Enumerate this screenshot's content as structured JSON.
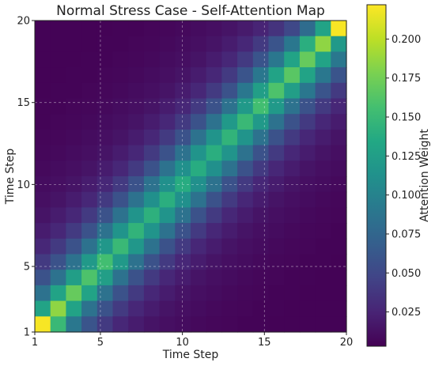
{
  "chart_data": {
    "type": "heatmap",
    "title": "Normal Stress Case - Self-Attention Map",
    "xlabel": "Time Step",
    "ylabel": "Time Step",
    "x_ticks": [
      "1",
      "5",
      "10",
      "15",
      "20"
    ],
    "y_ticks": [
      "1",
      "5",
      "10",
      "15",
      "20"
    ],
    "x_tick_values": [
      1,
      5,
      10,
      15,
      20
    ],
    "y_tick_values": [
      1,
      5,
      10,
      15,
      20
    ],
    "rows_top_to_bottom_time_step": [
      20,
      19,
      18,
      17,
      16,
      15,
      14,
      13,
      12,
      11,
      10,
      9,
      8,
      7,
      6,
      5,
      4,
      3,
      2,
      1
    ],
    "cols_left_to_right_time_step": [
      1,
      2,
      3,
      4,
      5,
      6,
      7,
      8,
      9,
      10,
      11,
      12,
      13,
      14,
      15,
      16,
      17,
      18,
      19,
      20
    ],
    "values": [
      [
        0.004,
        0.004,
        0.004,
        0.004,
        0.004,
        0.005,
        0.005,
        0.006,
        0.007,
        0.008,
        0.01,
        0.012,
        0.015,
        0.019,
        0.025,
        0.035,
        0.05,
        0.08,
        0.13,
        0.22
      ],
      [
        0.004,
        0.004,
        0.004,
        0.004,
        0.005,
        0.005,
        0.006,
        0.007,
        0.008,
        0.01,
        0.012,
        0.015,
        0.02,
        0.027,
        0.04,
        0.06,
        0.09,
        0.14,
        0.185,
        0.12
      ],
      [
        0.004,
        0.004,
        0.004,
        0.005,
        0.005,
        0.006,
        0.007,
        0.008,
        0.01,
        0.012,
        0.015,
        0.02,
        0.027,
        0.04,
        0.06,
        0.09,
        0.13,
        0.17,
        0.13,
        0.09
      ],
      [
        0.004,
        0.004,
        0.005,
        0.005,
        0.006,
        0.007,
        0.008,
        0.01,
        0.012,
        0.015,
        0.02,
        0.027,
        0.04,
        0.06,
        0.09,
        0.13,
        0.165,
        0.13,
        0.09,
        0.06
      ],
      [
        0.004,
        0.005,
        0.005,
        0.006,
        0.007,
        0.008,
        0.01,
        0.012,
        0.015,
        0.02,
        0.027,
        0.04,
        0.058,
        0.09,
        0.125,
        0.16,
        0.125,
        0.09,
        0.06,
        0.04
      ],
      [
        0.005,
        0.005,
        0.006,
        0.007,
        0.008,
        0.01,
        0.012,
        0.015,
        0.02,
        0.027,
        0.04,
        0.058,
        0.085,
        0.12,
        0.155,
        0.12,
        0.085,
        0.058,
        0.04,
        0.027
      ],
      [
        0.005,
        0.006,
        0.007,
        0.008,
        0.01,
        0.012,
        0.015,
        0.02,
        0.027,
        0.04,
        0.058,
        0.085,
        0.12,
        0.15,
        0.12,
        0.085,
        0.058,
        0.04,
        0.027,
        0.02
      ],
      [
        0.006,
        0.007,
        0.008,
        0.01,
        0.012,
        0.015,
        0.02,
        0.027,
        0.04,
        0.058,
        0.085,
        0.115,
        0.145,
        0.115,
        0.085,
        0.058,
        0.04,
        0.027,
        0.02,
        0.015
      ],
      [
        0.007,
        0.008,
        0.01,
        0.012,
        0.015,
        0.02,
        0.027,
        0.04,
        0.058,
        0.085,
        0.115,
        0.14,
        0.115,
        0.085,
        0.058,
        0.04,
        0.027,
        0.02,
        0.015,
        0.012
      ],
      [
        0.008,
        0.01,
        0.012,
        0.015,
        0.02,
        0.027,
        0.04,
        0.058,
        0.085,
        0.112,
        0.138,
        0.112,
        0.085,
        0.058,
        0.04,
        0.027,
        0.02,
        0.015,
        0.012,
        0.01
      ],
      [
        0.01,
        0.012,
        0.015,
        0.02,
        0.027,
        0.04,
        0.058,
        0.085,
        0.112,
        0.138,
        0.112,
        0.085,
        0.058,
        0.04,
        0.027,
        0.02,
        0.015,
        0.012,
        0.01,
        0.008
      ],
      [
        0.012,
        0.015,
        0.02,
        0.027,
        0.04,
        0.058,
        0.085,
        0.112,
        0.14,
        0.112,
        0.085,
        0.058,
        0.04,
        0.027,
        0.02,
        0.015,
        0.012,
        0.01,
        0.008,
        0.007
      ],
      [
        0.015,
        0.02,
        0.027,
        0.04,
        0.058,
        0.085,
        0.115,
        0.142,
        0.115,
        0.085,
        0.058,
        0.04,
        0.027,
        0.02,
        0.015,
        0.012,
        0.01,
        0.008,
        0.007,
        0.006
      ],
      [
        0.02,
        0.027,
        0.04,
        0.058,
        0.085,
        0.115,
        0.145,
        0.115,
        0.085,
        0.058,
        0.04,
        0.027,
        0.02,
        0.015,
        0.012,
        0.01,
        0.008,
        0.007,
        0.006,
        0.005
      ],
      [
        0.027,
        0.04,
        0.058,
        0.085,
        0.118,
        0.15,
        0.118,
        0.085,
        0.058,
        0.04,
        0.027,
        0.02,
        0.015,
        0.012,
        0.01,
        0.008,
        0.007,
        0.006,
        0.005,
        0.005
      ],
      [
        0.04,
        0.058,
        0.085,
        0.12,
        0.155,
        0.12,
        0.085,
        0.058,
        0.04,
        0.027,
        0.02,
        0.015,
        0.012,
        0.01,
        0.008,
        0.007,
        0.006,
        0.005,
        0.005,
        0.004
      ],
      [
        0.058,
        0.085,
        0.125,
        0.16,
        0.125,
        0.085,
        0.058,
        0.04,
        0.027,
        0.02,
        0.015,
        0.012,
        0.01,
        0.008,
        0.007,
        0.006,
        0.005,
        0.005,
        0.004,
        0.004
      ],
      [
        0.085,
        0.13,
        0.17,
        0.13,
        0.085,
        0.058,
        0.04,
        0.027,
        0.02,
        0.015,
        0.012,
        0.01,
        0.008,
        0.007,
        0.006,
        0.005,
        0.005,
        0.004,
        0.004,
        0.004
      ],
      [
        0.13,
        0.185,
        0.13,
        0.085,
        0.058,
        0.04,
        0.027,
        0.02,
        0.015,
        0.012,
        0.01,
        0.008,
        0.007,
        0.006,
        0.005,
        0.005,
        0.004,
        0.004,
        0.004,
        0.004
      ],
      [
        0.22,
        0.15,
        0.09,
        0.06,
        0.04,
        0.027,
        0.02,
        0.015,
        0.012,
        0.01,
        0.008,
        0.007,
        0.006,
        0.005,
        0.005,
        0.004,
        0.004,
        0.004,
        0.004,
        0.004
      ]
    ],
    "vmin": 0.003,
    "vmax": 0.222,
    "colormap": "viridis",
    "grid": true,
    "colorbar": {
      "label": "Attention Weight",
      "ticks": [
        "0.025",
        "0.050",
        "0.075",
        "0.100",
        "0.125",
        "0.150",
        "0.175",
        "0.200"
      ],
      "tick_values": [
        0.025,
        0.05,
        0.075,
        0.1,
        0.125,
        0.15,
        0.175,
        0.2
      ],
      "position": "right"
    }
  }
}
